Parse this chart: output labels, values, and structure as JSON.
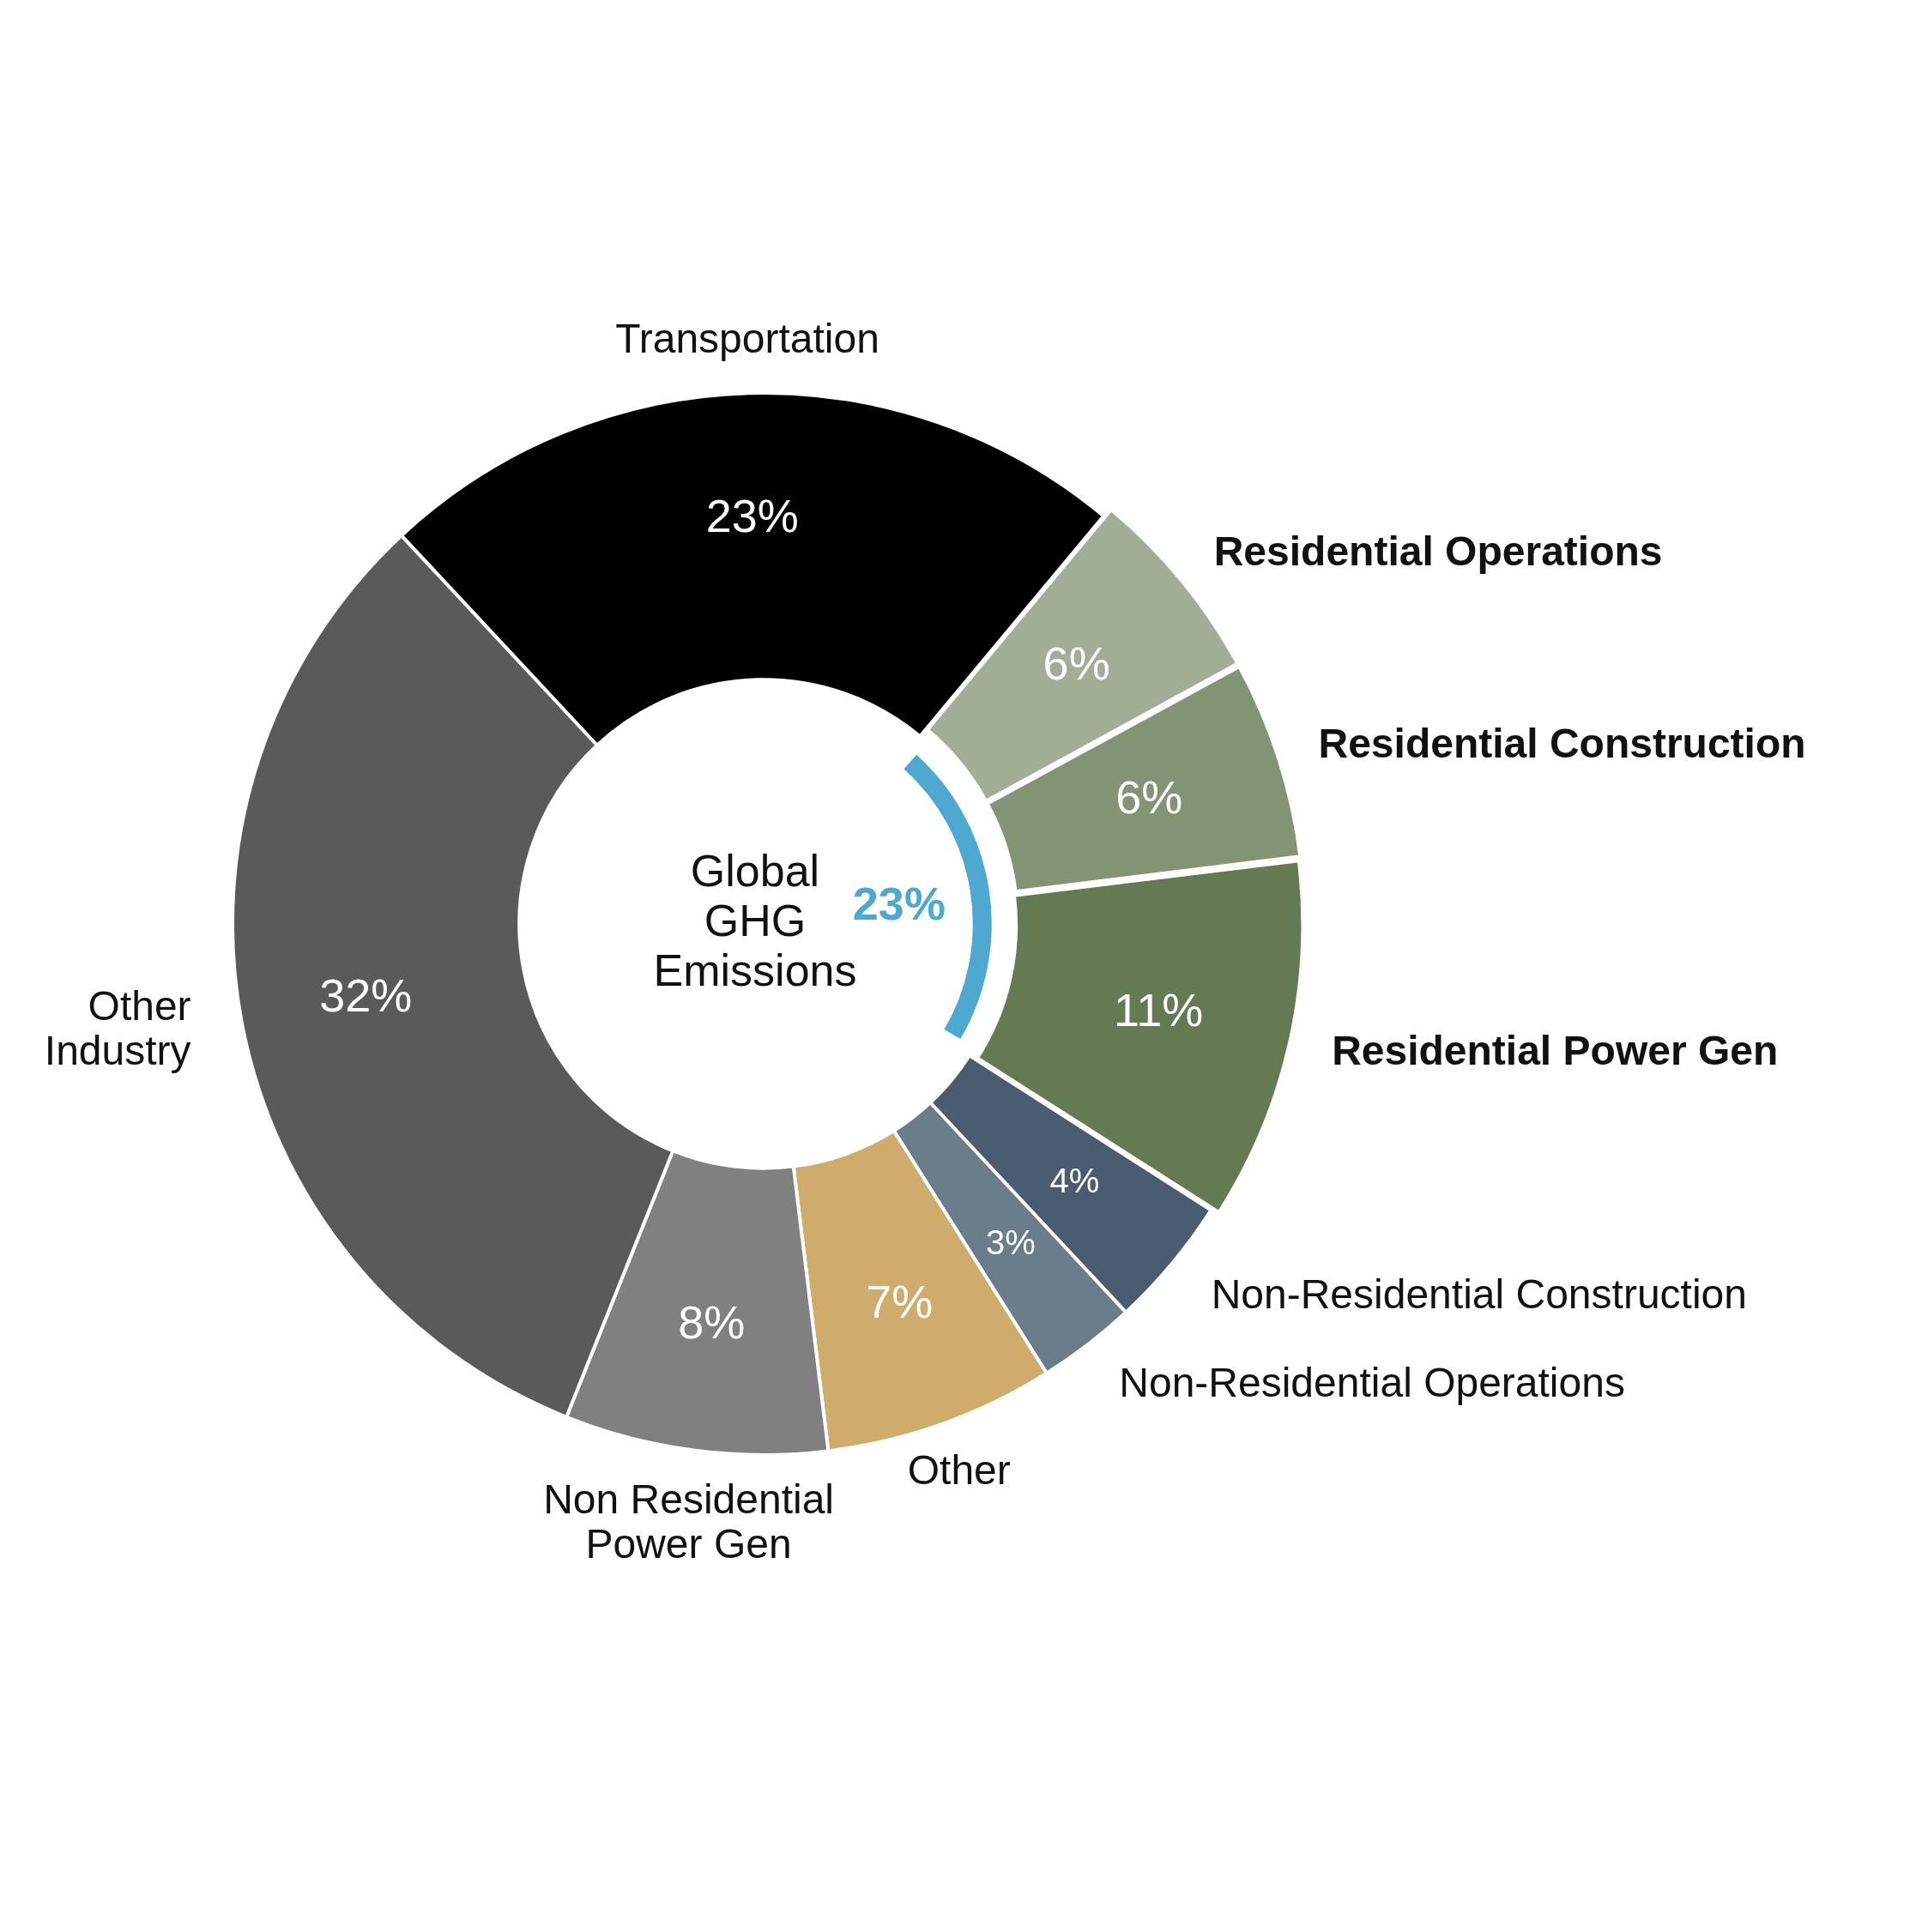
{
  "chart_data": {
    "type": "donut",
    "title": "Global GHG Emissions",
    "categories": [
      "Transportation",
      "Residential Operations",
      "Residential Construction",
      "Residential Power Gen",
      "Non-Residential Construction",
      "Non-Residential Operations",
      "Other",
      "Non Residential Power Gen",
      "Other Industry"
    ],
    "values": [
      23,
      6,
      6,
      11,
      4,
      3,
      7,
      8,
      32
    ],
    "colors": [
      "#000000",
      "#a2ad96",
      "#829473",
      "#647a53",
      "#4a5d70",
      "#6a7d8b",
      "#cfac6c",
      "#808080",
      "#5a5a5a"
    ],
    "value_labels": [
      "23%",
      "6%",
      "6%",
      "11%",
      "4%",
      "3%",
      "7%",
      "8%",
      "32%"
    ],
    "annotations": [
      "23%"
    ],
    "legend": false
  }
}
